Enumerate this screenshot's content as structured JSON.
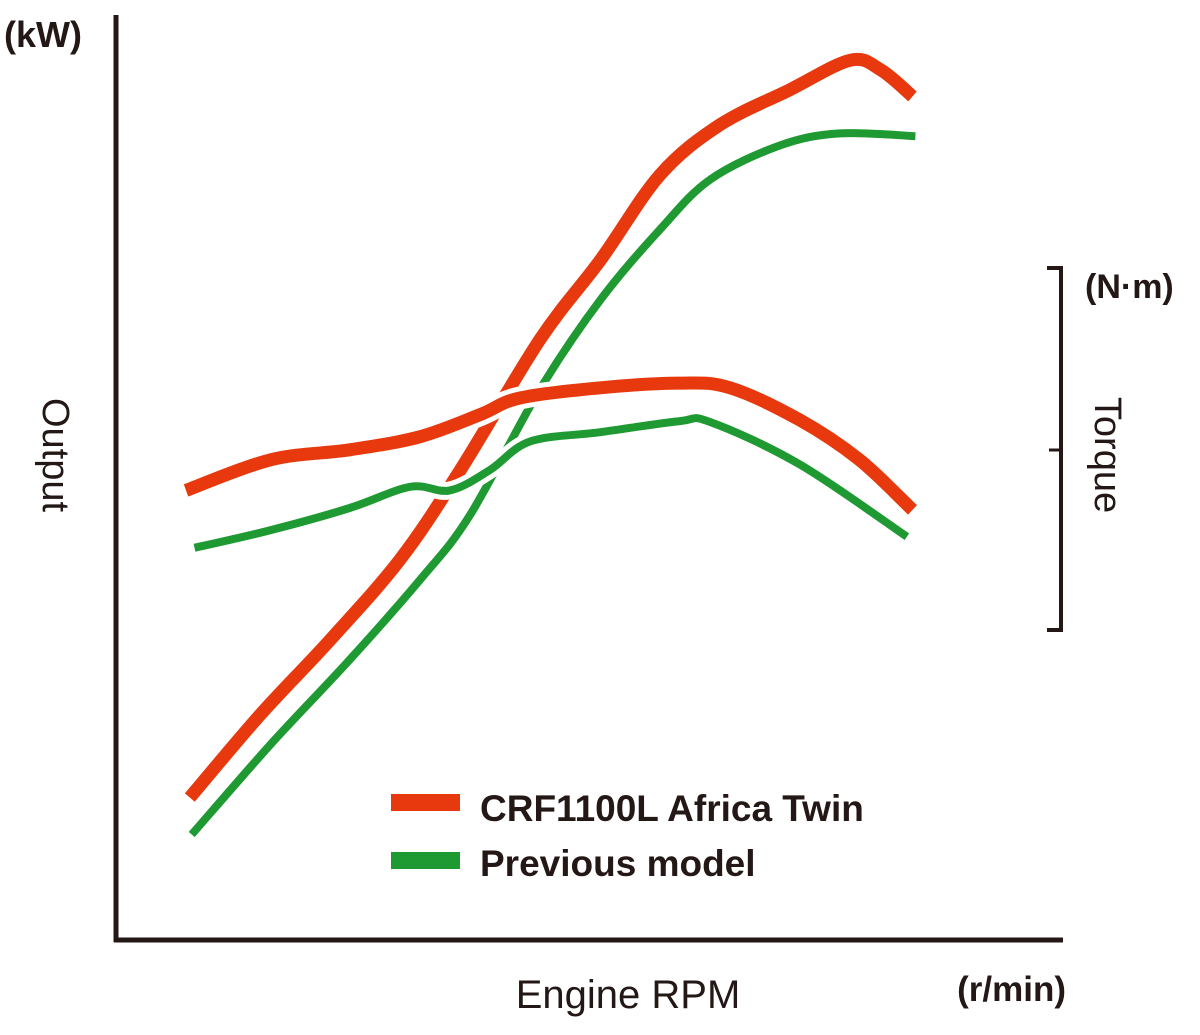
{
  "chart_data": {
    "type": "line",
    "title": "",
    "xlabel": "Engine RPM",
    "x_unit": "(r/min)",
    "ylabel_left": "Output",
    "y_unit_left": "(kW)",
    "ylabel_right": "Torque",
    "y_unit_right": "(N·m)",
    "axis_note": "No numeric tick values shown; values are normalized 0–100 of the plotted axis range",
    "xlim": [
      0,
      100
    ],
    "ylim": [
      0,
      100
    ],
    "grid": false,
    "legend_position": "bottom-center",
    "colors": {
      "current": "#E8380D",
      "previous": "#1F9A32",
      "axis": "#231815"
    },
    "legend": [
      {
        "label": "CRF1100L Africa Twin",
        "color": "#E8380D"
      },
      {
        "label": "Previous model",
        "color": "#1F9A32"
      }
    ],
    "series": [
      {
        "name": "CRF1100L Africa Twin - Output",
        "model": "CRF1100L Africa Twin",
        "quantity": "Output",
        "color": "#E8380D",
        "points": [
          [
            7.8,
            15.4
          ],
          [
            15.2,
            24.3
          ],
          [
            22.6,
            32.4
          ],
          [
            30.0,
            41.1
          ],
          [
            36.4,
            50.8
          ],
          [
            44.8,
            64.9
          ],
          [
            51.2,
            73.5
          ],
          [
            57.5,
            82.7
          ],
          [
            63.8,
            88.1
          ],
          [
            71.2,
            91.9
          ],
          [
            77.6,
            95.1
          ],
          [
            80.8,
            94.1
          ],
          [
            84.2,
            91.2
          ]
        ]
      },
      {
        "name": "Previous model - Output",
        "model": "Previous model",
        "quantity": "Output",
        "color": "#1F9A32",
        "points": [
          [
            8.0,
            11.4
          ],
          [
            16.3,
            21.1
          ],
          [
            24.7,
            30.3
          ],
          [
            32.1,
            38.9
          ],
          [
            37.4,
            45.9
          ],
          [
            44.8,
            59.5
          ],
          [
            51.2,
            69.2
          ],
          [
            57.5,
            76.8
          ],
          [
            62.8,
            82.2
          ],
          [
            70.2,
            85.9
          ],
          [
            76.5,
            87.2
          ],
          [
            84.5,
            86.9
          ]
        ]
      },
      {
        "name": "CRF1100L Africa Twin - Torque",
        "model": "CRF1100L Africa Twin",
        "quantity": "Torque",
        "color": "#E8380D",
        "points": [
          [
            7.4,
            48.6
          ],
          [
            16.3,
            51.9
          ],
          [
            24.7,
            53.0
          ],
          [
            32.1,
            54.4
          ],
          [
            38.5,
            56.8
          ],
          [
            42.7,
            58.6
          ],
          [
            51.2,
            59.7
          ],
          [
            59.6,
            60.2
          ],
          [
            64.9,
            59.7
          ],
          [
            72.3,
            56.2
          ],
          [
            78.6,
            51.9
          ],
          [
            84.2,
            46.5
          ]
        ]
      },
      {
        "name": "Previous model - Torque",
        "model": "Previous model",
        "quantity": "Torque",
        "color": "#1F9A32",
        "points": [
          [
            8.3,
            42.4
          ],
          [
            16.3,
            44.3
          ],
          [
            24.7,
            46.7
          ],
          [
            31.1,
            49.0
          ],
          [
            35.3,
            48.6
          ],
          [
            39.5,
            50.8
          ],
          [
            43.8,
            53.9
          ],
          [
            51.2,
            54.9
          ],
          [
            59.6,
            56.1
          ],
          [
            62.8,
            56.0
          ],
          [
            72.3,
            51.4
          ],
          [
            83.6,
            43.6
          ]
        ]
      }
    ]
  }
}
